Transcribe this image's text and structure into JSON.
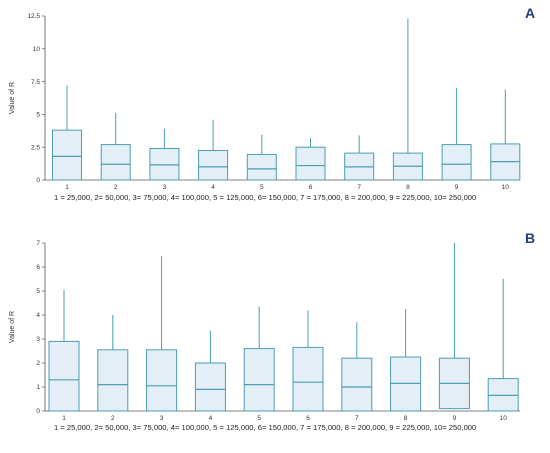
{
  "chart_data": [
    {
      "type": "box",
      "panel_label": "A",
      "ylabel": "Value of R",
      "ylim": [
        0,
        12.5
      ],
      "yticks": [
        "0",
        "2.5",
        "5",
        "7.5",
        "10",
        "12.5"
      ],
      "categories": [
        "1",
        "2",
        "3",
        "4",
        "5",
        "6",
        "7",
        "8",
        "9",
        "10"
      ],
      "boxes": [
        {
          "min": 0,
          "q1": 0,
          "median": 1.8,
          "q3": 3.8,
          "max": 7.2
        },
        {
          "min": 0,
          "q1": 0,
          "median": 1.2,
          "q3": 2.7,
          "max": 5.1
        },
        {
          "min": 0,
          "q1": 0,
          "median": 1.15,
          "q3": 2.4,
          "max": 3.9
        },
        {
          "min": 0,
          "q1": 0,
          "median": 1.0,
          "q3": 2.25,
          "max": 4.6
        },
        {
          "min": 0,
          "q1": 0,
          "median": 0.85,
          "q3": 1.95,
          "max": 3.45
        },
        {
          "min": 0,
          "q1": 0,
          "median": 1.1,
          "q3": 2.5,
          "max": 3.2
        },
        {
          "min": 0,
          "q1": 0,
          "median": 1.0,
          "q3": 2.05,
          "max": 3.4
        },
        {
          "min": 0,
          "q1": 0,
          "median": 1.05,
          "q3": 2.05,
          "max": 12.3
        },
        {
          "min": 0,
          "q1": 0,
          "median": 1.2,
          "q3": 2.7,
          "max": 7.0
        },
        {
          "min": 0,
          "q1": 0,
          "median": 1.4,
          "q3": 2.75,
          "max": 6.9
        }
      ],
      "legend_text": "1 = 25,000, 2= 50,000, 3= 75,000, 4= 100,000, 5 = 125,000, 6= 150,000, 7 = 175,000, 8 = 200,000, 9 = 225,000, 10= 250,000"
    },
    {
      "type": "box",
      "panel_label": "B",
      "ylabel": "Value of R",
      "ylim": [
        0,
        7
      ],
      "yticks": [
        "0",
        "1",
        "2",
        "3",
        "4",
        "5",
        "6",
        "7"
      ],
      "categories": [
        "1",
        "2",
        "3",
        "4",
        "5",
        "6",
        "7",
        "8",
        "9",
        "10"
      ],
      "boxes": [
        {
          "min": 0,
          "q1": 0,
          "median": 1.3,
          "q3": 2.9,
          "max": 5.05
        },
        {
          "min": 0,
          "q1": 0,
          "median": 1.1,
          "q3": 2.55,
          "max": 4.0
        },
        {
          "min": 0,
          "q1": 0,
          "median": 1.05,
          "q3": 2.55,
          "max": 6.45
        },
        {
          "min": 0,
          "q1": 0,
          "median": 0.9,
          "q3": 2.0,
          "max": 3.35
        },
        {
          "min": 0,
          "q1": 0,
          "median": 1.1,
          "q3": 2.6,
          "max": 4.35
        },
        {
          "min": 0,
          "q1": 0,
          "median": 1.2,
          "q3": 2.65,
          "max": 4.2
        },
        {
          "min": 0,
          "q1": 0,
          "median": 1.0,
          "q3": 2.2,
          "max": 3.7
        },
        {
          "min": 0,
          "q1": 0,
          "median": 1.15,
          "q3": 2.25,
          "max": 4.25
        },
        {
          "min": 0,
          "q1": 0.1,
          "median": 1.15,
          "q3": 2.2,
          "max": 7.0
        },
        {
          "min": 0,
          "q1": 0,
          "median": 0.65,
          "q3": 1.35,
          "max": 5.5
        }
      ],
      "legend_text": "1 = 25,000, 2= 50,000, 3= 75,000, 4= 100,000, 5 = 125,000, 6= 150,000, 7 = 175,000, 8 = 200,000, 9 = 225,000, 10= 250,000"
    }
  ],
  "colors": {
    "box_fill": "#e3eef7",
    "box_stroke": "#4a9fb0",
    "axis": "#555555",
    "panel_label": "#1f3f7a"
  }
}
